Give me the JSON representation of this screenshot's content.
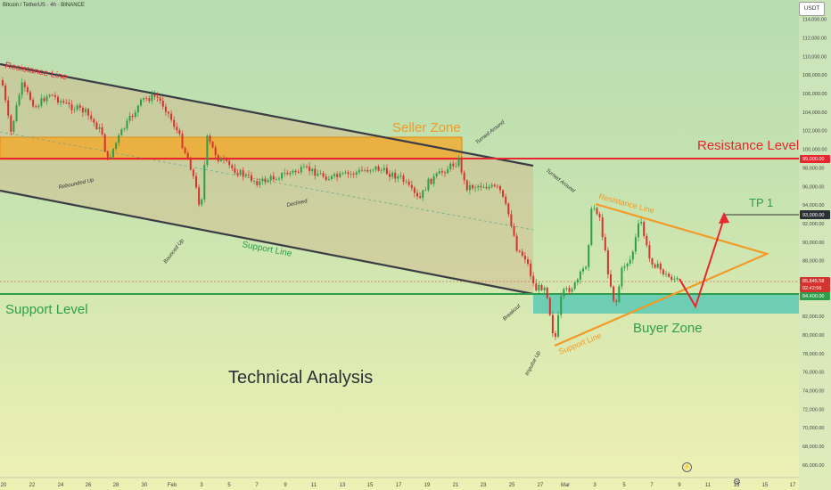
{
  "header": {
    "symbol_line": "Bitcoin / TetherUS · 4h · BINANCE"
  },
  "price_axis": {
    "currency": "USDT",
    "ticks": [
      "114,000.00",
      "112,000.00",
      "110,000.00",
      "108,000.00",
      "106,000.00",
      "104,000.00",
      "102,000.00",
      "100,000.00",
      "98,000.00",
      "96,000.00",
      "94,000.00",
      "92,000.00",
      "90,000.00",
      "88,000.00",
      "86,000.00",
      "82,000.00",
      "80,000.00",
      "78,000.00",
      "76,000.00",
      "74,000.00",
      "72,000.00",
      "70,000.00",
      "68,000.00",
      "66,000.00"
    ],
    "badges": {
      "resistance": "99,000.00",
      "tp": "93,000.00",
      "current_price": "85,845.58",
      "countdown": "02:42:56",
      "support": "84,400.00"
    }
  },
  "time_axis": {
    "labels": [
      "20",
      "22",
      "24",
      "26",
      "28",
      "30",
      "Feb",
      "3",
      "5",
      "7",
      "9",
      "11",
      "13",
      "15",
      "17",
      "19",
      "21",
      "23",
      "25",
      "27",
      "Mar",
      "3",
      "5",
      "7",
      "9",
      "11",
      "13",
      "15",
      "17"
    ]
  },
  "annotations": {
    "resistance_line_left": "Resistance Line",
    "seller_zone": "Seller Zone",
    "turned_around_1": "Turned Around",
    "resistance_level": "Resistance Level",
    "rebounded_up": "Rebounded Up",
    "declined": "Declined",
    "turned_around_2": "Turned Around",
    "resistance_line_right": "Resistance Line",
    "tp1": "TP 1",
    "bounced_up": "Bounced Up",
    "support_line_left": "Support Line",
    "support_level": "Support Level",
    "breakout": "Breakout",
    "buyer_zone": "Buyer Zone",
    "support_line_right": "Support Line",
    "impulse_up": "Impulse Up",
    "title": "Technical Analysis"
  },
  "colors": {
    "resistance": "#e8262f",
    "support": "#2e9e4a",
    "seller_zone": "#f5a623",
    "buyer_zone": "#5cc9b4",
    "triangle": "#f39a26",
    "channel": "#3a3d44",
    "candle_up": "#2e9e4a",
    "candle_down": "#d6322e"
  }
}
